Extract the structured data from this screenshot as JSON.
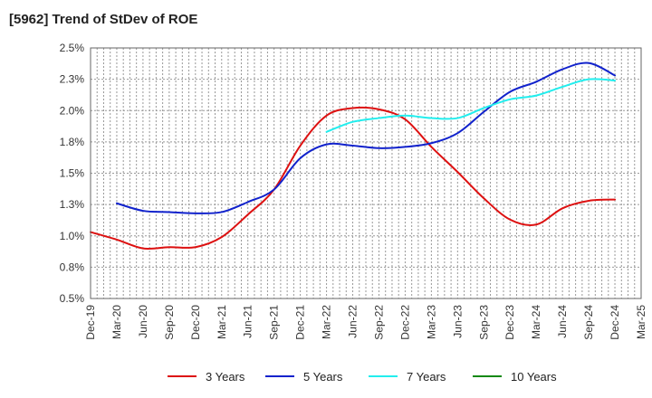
{
  "chart_data": {
    "type": "line",
    "title": "[5962]  Trend of StDev of ROE",
    "xlabel": "",
    "ylabel": "",
    "ylim": [
      0.5,
      2.5
    ],
    "yticks": [
      "0.5%",
      "0.8%",
      "1.0%",
      "1.3%",
      "1.5%",
      "1.8%",
      "2.0%",
      "2.3%",
      "2.5%"
    ],
    "x_categories": [
      "Dec-19",
      "Mar-20",
      "Jun-20",
      "Sep-20",
      "Dec-20",
      "Mar-21",
      "Jun-21",
      "Sep-21",
      "Dec-21",
      "Mar-22",
      "Jun-22",
      "Sep-22",
      "Dec-22",
      "Mar-23",
      "Jun-23",
      "Sep-23",
      "Dec-23",
      "Mar-24",
      "Jun-24",
      "Sep-24",
      "Dec-24",
      "Mar-25"
    ],
    "grid": true,
    "legend_position": "bottom",
    "series": [
      {
        "name": "3 Years",
        "color": "#dd1111",
        "values": [
          1.03,
          0.97,
          0.9,
          0.91,
          0.91,
          0.99,
          1.17,
          1.37,
          1.72,
          1.96,
          2.02,
          2.01,
          1.93,
          1.71,
          1.51,
          1.3,
          1.13,
          1.09,
          1.22,
          1.28,
          1.29,
          null
        ]
      },
      {
        "name": "5 Years",
        "color": "#1122cc",
        "values": [
          null,
          1.26,
          1.2,
          1.19,
          1.18,
          1.19,
          1.27,
          1.37,
          1.62,
          1.73,
          1.72,
          1.7,
          1.71,
          1.74,
          1.82,
          1.99,
          2.15,
          2.23,
          2.33,
          2.38,
          2.28,
          null
        ]
      },
      {
        "name": "7 Years",
        "color": "#22eeee",
        "values": [
          null,
          null,
          null,
          null,
          null,
          null,
          null,
          null,
          null,
          1.83,
          1.91,
          1.94,
          1.96,
          1.94,
          1.94,
          2.02,
          2.09,
          2.12,
          2.19,
          2.25,
          2.24,
          null
        ]
      },
      {
        "name": "10 Years",
        "color": "#118811",
        "values": [
          null,
          null,
          null,
          null,
          null,
          null,
          null,
          null,
          null,
          null,
          null,
          null,
          null,
          null,
          null,
          null,
          null,
          null,
          null,
          null,
          null,
          null
        ]
      }
    ]
  }
}
